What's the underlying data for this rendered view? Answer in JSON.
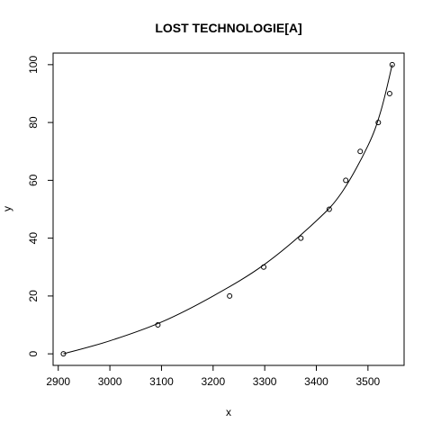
{
  "chart_data": {
    "type": "scatter",
    "title": "LOST TECHNOLOGIE[A]",
    "xlabel": "x",
    "ylabel": "y",
    "xlim": [
      2890,
      3570
    ],
    "ylim": [
      -4,
      104
    ],
    "x_ticks": [
      2900,
      3000,
      3100,
      3200,
      3300,
      3400,
      3500
    ],
    "y_ticks": [
      0,
      20,
      40,
      60,
      80,
      100
    ],
    "grid": false,
    "legend": "none",
    "series": [
      {
        "type": "points",
        "x": [
          2910,
          3093,
          3232,
          3298,
          3370,
          3425,
          3457,
          3485,
          3520,
          3542,
          3547
        ],
        "y": [
          0,
          10,
          20,
          30,
          40,
          50,
          60,
          70,
          80,
          90,
          100
        ]
      },
      {
        "type": "fitted-curve",
        "x": [
          2910,
          3000,
          3100,
          3200,
          3300,
          3400,
          3450,
          3500,
          3525,
          3547
        ],
        "y": [
          0,
          4.5,
          11,
          20,
          31,
          46,
          56,
          72,
          84,
          100
        ]
      }
    ]
  }
}
